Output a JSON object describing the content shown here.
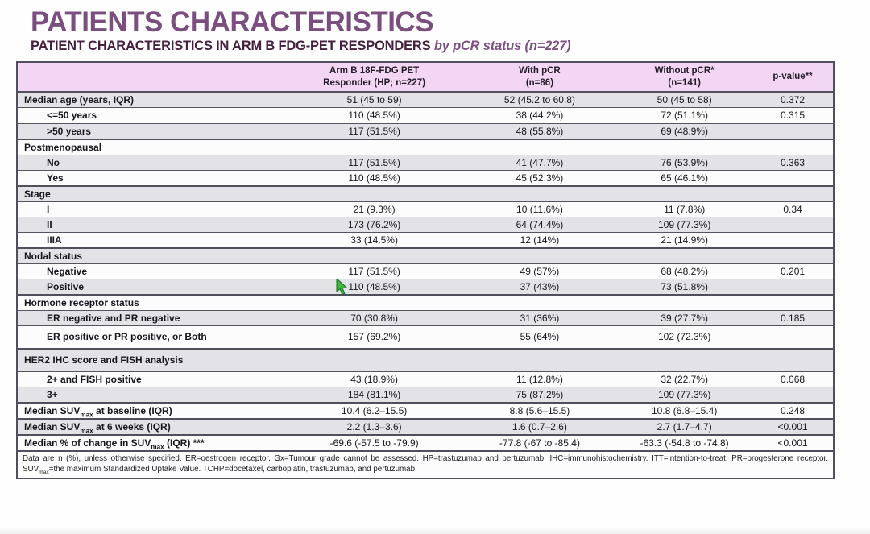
{
  "title": "PATIENTS CHARACTERISTICS",
  "subtitle": {
    "main": "PATIENT CHARACTERISTICS IN ARM B FDG-PET RESPONDERS",
    "italic": "by pCR status (n=227)"
  },
  "colors": {
    "title_purple": "#7b4e80",
    "subtitle_dark_plum": "#46213f",
    "subtitle_italic_purple": "#7d5084",
    "header_pink": "#f3d6f3",
    "row_grey": "#e3e3e7",
    "row_white": "#fcfcfd",
    "border_dark": "#514f5c",
    "cursor_green": "#3fb83f"
  },
  "icons": {
    "cursor": "green-pointer-cursor"
  },
  "table": {
    "columns": [
      {
        "line1": "",
        "line2": ""
      },
      {
        "line1": "Arm B 18F-FDG PET",
        "line2": "Responder (HP; n=227)"
      },
      {
        "line1": "With pCR",
        "line2": "(n=86)"
      },
      {
        "line1": "Without pCR*",
        "line2": "(n=141)"
      },
      {
        "line1": "p-value**",
        "line2": ""
      }
    ],
    "rows": [
      {
        "label": "Median age (years, IQR)",
        "indent": 0,
        "values": [
          "51 (45 to 59)",
          "52 (45.2 to 60.8)",
          "50 (45 to 58)",
          "0.372"
        ]
      },
      {
        "label": "<=50 years",
        "indent": 1,
        "values": [
          "110 (48.5%)",
          "38 (44.2%)",
          "72 (51.1%)",
          "0.315"
        ]
      },
      {
        "label": ">50 years",
        "indent": 1,
        "values": [
          "117 (51.5%)",
          "48 (55.8%)",
          "69 (48.9%)",
          ""
        ]
      },
      {
        "label": "Postmenopausal",
        "section": true,
        "heavy": true
      },
      {
        "label": "No",
        "indent": 1,
        "values": [
          "117 (51.5%)",
          "41 (47.7%)",
          "76 (53.9%)",
          "0.363"
        ]
      },
      {
        "label": "Yes",
        "indent": 1,
        "values": [
          "110 (48.5%)",
          "45 (52.3%)",
          "65 (46.1%)",
          ""
        ]
      },
      {
        "label": "Stage",
        "section": true,
        "heavy": true
      },
      {
        "label": "I",
        "indent": 1,
        "values": [
          "21 (9.3%)",
          "10 (11.6%)",
          "11 (7.8%)",
          "0.34"
        ]
      },
      {
        "label": "II",
        "indent": 1,
        "values": [
          "173 (76.2%)",
          "64 (74.4%)",
          "109 (77.3%)",
          ""
        ]
      },
      {
        "label": "IIIA",
        "indent": 1,
        "values": [
          "33 (14.5%)",
          "12 (14%)",
          "21 (14.9%)",
          ""
        ]
      },
      {
        "label": "Nodal status",
        "section": true,
        "heavy": true
      },
      {
        "label": "Negative",
        "indent": 1,
        "values": [
          "117 (51.5%)",
          "49 (57%)",
          "68 (48.2%)",
          "0.201"
        ]
      },
      {
        "label": "Positive",
        "indent": 1,
        "values": [
          "110 (48.5%)",
          "37 (43%)",
          "73 (51.8%)",
          ""
        ]
      },
      {
        "label": "Hormone receptor status",
        "section": true,
        "heavy": true
      },
      {
        "label": "ER negative and PR negative",
        "indent": 1,
        "values": [
          "70 (30.8%)",
          "31 (36%)",
          "39 (27.7%)",
          "0.185"
        ]
      },
      {
        "label": "ER positive or PR positive, or Both",
        "indent": 1,
        "tall": true,
        "values": [
          "157 (69.2%)",
          "55 (64%)",
          "102 (72.3%)",
          ""
        ]
      },
      {
        "label": "HER2 IHC score and FISH analysis",
        "section": true,
        "heavy": true,
        "tall": true
      },
      {
        "label": "2+ and FISH positive",
        "indent": 1,
        "values": [
          "43 (18.9%)",
          "11 (12.8%)",
          "32 (22.7%)",
          "0.068"
        ]
      },
      {
        "label": "3+",
        "indent": 1,
        "values": [
          "184 (81.1%)",
          "75 (87.2%)",
          "109 (77.3%)",
          ""
        ]
      },
      {
        "label": [
          {
            "t": "text",
            "v": "Median SUV"
          },
          {
            "t": "sub",
            "v": "max"
          },
          {
            "t": "text",
            "v": " at baseline (IQR)"
          }
        ],
        "indent": 0,
        "heavy": true,
        "values": [
          "10.4 (6.2–15.5)",
          "8.8 (5.6–15.5)",
          "10.8 (6.8–15.4)",
          "0.248"
        ]
      },
      {
        "label": [
          {
            "t": "text",
            "v": "Median SUV"
          },
          {
            "t": "sub",
            "v": "max"
          },
          {
            "t": "text",
            "v": " at 6 weeks (IQR)"
          }
        ],
        "indent": 0,
        "heavy": true,
        "values": [
          "2.2 (1.3–3.6)",
          "1.6 (0.7–2.6)",
          "2.7 (1.7–4.7)",
          "<0.001"
        ]
      },
      {
        "label": [
          {
            "t": "text",
            "v": "Median % of change in SUV"
          },
          {
            "t": "sub",
            "v": "max"
          },
          {
            "t": "text",
            "v": " (IQR) ***"
          }
        ],
        "indent": 0,
        "heavy": true,
        "values": [
          "-69.6 (-57.5 to -79.9)",
          "-77.8 (-67 to -85.4)",
          "-63.3 (-54.8 to -74.8)",
          "<0.001"
        ]
      }
    ],
    "footnote": {
      "seg1": "Data are n (%), unless otherwise specified. ER=oestrogen receptor. Gx=Tumour grade cannot be assessed. HP=trastuzumab and pertuzumab. IHC=immunohistochemistry. ITT=intention-to-treat. PR=progesterone receptor. SUV",
      "sub": "max",
      "seg2": "=the maximum Standardized Uptake Value. TCHP=docetaxel, carboplatin, trastuzumab, and pertuzumab."
    }
  }
}
